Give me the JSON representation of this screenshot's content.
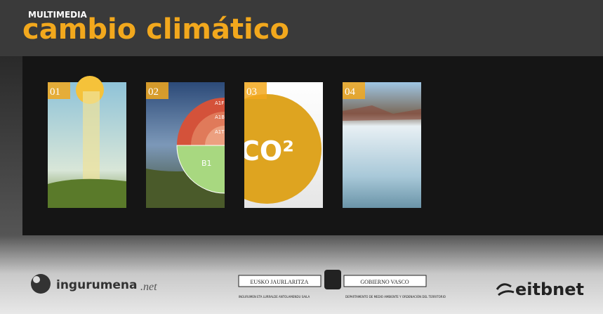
{
  "header": {
    "label": "MULTIMEDIA",
    "title": "cambio climático"
  },
  "cards": [
    {
      "number": "01"
    },
    {
      "number": "02",
      "labels": [
        "A1FI",
        "A1B",
        "A1T",
        "B1"
      ]
    },
    {
      "number": "03",
      "text": "CO²"
    },
    {
      "number": "04"
    }
  ],
  "footer": {
    "ingurumena": {
      "name": "ingurumena",
      "suffix": ".net"
    },
    "gobierno": {
      "left": "EUSKO JAURLARITZA",
      "right": "GOBIERNO VASCO",
      "left_sub": "INGURUMEN ETA LURRALDE ANTOLAMENDU SAILA",
      "right_sub": "DEPARTAMENTO DE MEDIO AMBIENTE Y ORDENACIÓN DEL TERRITORIO"
    },
    "eitb": "eitbnet"
  }
}
